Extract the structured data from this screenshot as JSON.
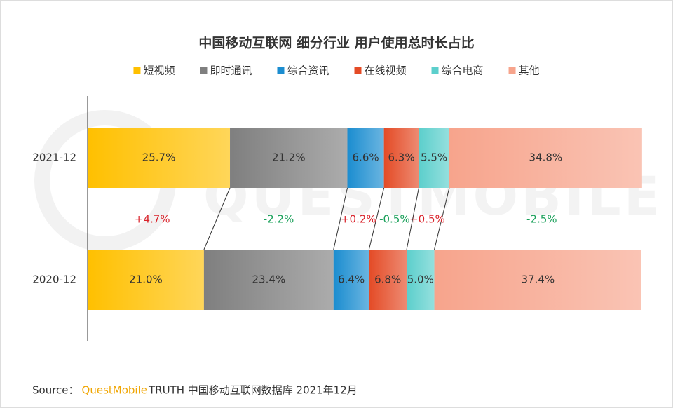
{
  "chart_data": {
    "type": "bar",
    "orientation": "horizontal",
    "stacked": true,
    "title": "中国移动互联网 细分行业 用户使用总时长占比",
    "categories": [
      "2021-12",
      "2020-12"
    ],
    "xlim": [
      0,
      100
    ],
    "series": [
      {
        "name": "短视频",
        "color": "#ffc000",
        "values": [
          25.7,
          21.0
        ],
        "value_labels": [
          "25.7%",
          "21.0%"
        ]
      },
      {
        "name": "即时通讯",
        "color": "#7f7f7f",
        "values": [
          21.2,
          23.4
        ],
        "value_labels": [
          "21.2%",
          "23.4%"
        ]
      },
      {
        "name": "综合资讯",
        "color": "#1b8dd0",
        "values": [
          6.6,
          6.4
        ],
        "value_labels": [
          "6.6%",
          "6.4%"
        ]
      },
      {
        "name": "在线视频",
        "color": "#e44b26",
        "values": [
          6.3,
          6.8
        ],
        "value_labels": [
          "6.3%",
          "6.8%"
        ]
      },
      {
        "name": "综合电商",
        "color": "#5ccfcc",
        "values": [
          5.5,
          5.0
        ],
        "value_labels": [
          "5.5%",
          "5.0%"
        ]
      },
      {
        "name": "其他",
        "color": "#f7a48c",
        "values": [
          34.8,
          37.4
        ],
        "value_labels": [
          "34.8%",
          "37.4%"
        ]
      }
    ],
    "annotations": [
      "+4.7%",
      "-2.2%",
      "+0.2%",
      "-0.5%",
      "+0.5%",
      "-2.5%"
    ],
    "watermark": "QUESTMOBILE"
  },
  "footer": {
    "source": "Source：",
    "brand": "QuestMobile",
    "text": "TRUTH 中国移动互联网数据库 2021年12月"
  }
}
